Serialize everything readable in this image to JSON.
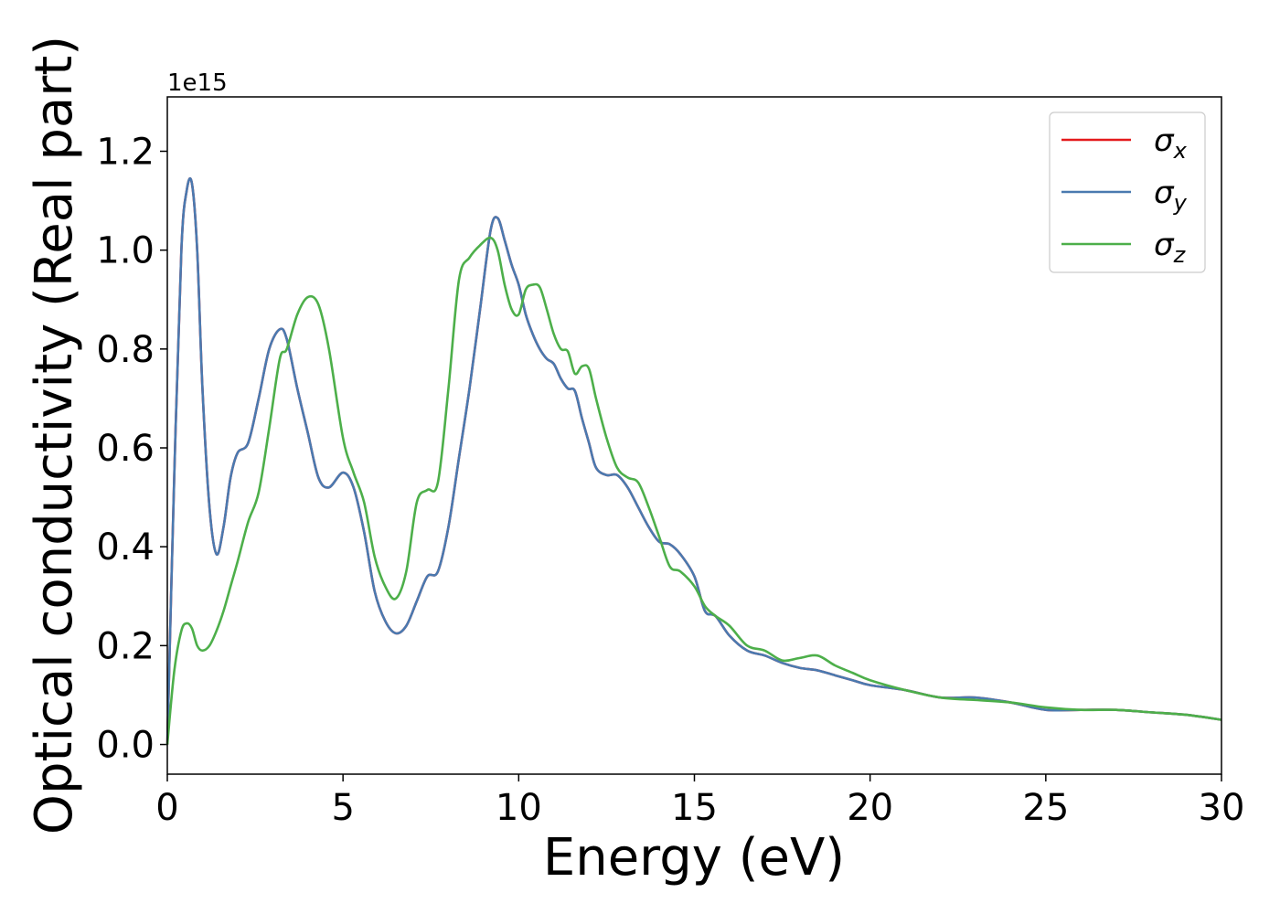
{
  "chart_data": {
    "type": "line",
    "xlabel": "Energy (eV)",
    "ylabel": "Optical conductivity (Real part)",
    "y_offset_label": "1e15",
    "xlim": [
      0,
      30
    ],
    "ylim": [
      -0.06,
      1.31
    ],
    "xticks": [
      0,
      5,
      10,
      15,
      20,
      25,
      30
    ],
    "xtick_labels": [
      "0",
      "5",
      "10",
      "15",
      "20",
      "25",
      "30"
    ],
    "yticks": [
      0.0,
      0.2,
      0.4,
      0.6,
      0.8,
      1.0,
      1.2
    ],
    "ytick_labels": [
      "0.0",
      "0.2",
      "0.4",
      "0.6",
      "0.8",
      "1.0",
      "1.2"
    ],
    "grid": false,
    "legend_position": "top-right",
    "x": [
      0,
      0.2,
      0.4,
      0.55,
      0.7,
      0.85,
      1.0,
      1.2,
      1.4,
      1.6,
      1.8,
      2.0,
      2.3,
      2.6,
      2.9,
      3.2,
      3.4,
      3.7,
      4.0,
      4.3,
      4.6,
      5.0,
      5.3,
      5.6,
      5.9,
      6.2,
      6.5,
      6.8,
      7.1,
      7.4,
      7.7,
      8.0,
      8.3,
      8.6,
      8.9,
      9.2,
      9.4,
      9.6,
      9.8,
      10.0,
      10.2,
      10.4,
      10.6,
      10.8,
      11.0,
      11.2,
      11.4,
      11.6,
      11.8,
      12.0,
      12.2,
      12.5,
      12.8,
      13.1,
      13.4,
      13.7,
      14.0,
      14.3,
      14.6,
      15.0,
      15.3,
      15.6,
      16.0,
      16.5,
      17.0,
      17.5,
      18.0,
      18.5,
      19.0,
      19.5,
      20.0,
      21.0,
      22.0,
      23.0,
      24.0,
      25.0,
      26.0,
      27.0,
      28.0,
      29.0,
      30.0
    ],
    "series": [
      {
        "name": "σx",
        "symbol": "σ",
        "subscript": "x",
        "color": "#e41a1c",
        "values": [
          0.0,
          0.55,
          1.0,
          1.12,
          1.135,
          1.0,
          0.72,
          0.48,
          0.385,
          0.44,
          0.54,
          0.59,
          0.61,
          0.7,
          0.8,
          0.84,
          0.82,
          0.72,
          0.63,
          0.54,
          0.52,
          0.55,
          0.52,
          0.43,
          0.31,
          0.25,
          0.225,
          0.24,
          0.29,
          0.34,
          0.35,
          0.44,
          0.58,
          0.72,
          0.88,
          1.04,
          1.065,
          1.02,
          0.97,
          0.93,
          0.87,
          0.83,
          0.8,
          0.78,
          0.77,
          0.74,
          0.72,
          0.715,
          0.66,
          0.61,
          0.56,
          0.545,
          0.545,
          0.52,
          0.48,
          0.44,
          0.41,
          0.405,
          0.385,
          0.34,
          0.27,
          0.26,
          0.22,
          0.19,
          0.18,
          0.165,
          0.155,
          0.15,
          0.14,
          0.13,
          0.12,
          0.11,
          0.095,
          0.095,
          0.085,
          0.07,
          0.07,
          0.07,
          0.065,
          0.06,
          0.05
        ]
      },
      {
        "name": "σy",
        "symbol": "σ",
        "subscript": "y",
        "color": "#4a7ab0",
        "values": [
          0.0,
          0.55,
          1.0,
          1.12,
          1.135,
          1.0,
          0.72,
          0.48,
          0.385,
          0.44,
          0.54,
          0.59,
          0.61,
          0.7,
          0.8,
          0.84,
          0.82,
          0.72,
          0.63,
          0.54,
          0.52,
          0.55,
          0.52,
          0.43,
          0.31,
          0.25,
          0.225,
          0.24,
          0.29,
          0.34,
          0.35,
          0.44,
          0.58,
          0.72,
          0.88,
          1.04,
          1.065,
          1.02,
          0.97,
          0.93,
          0.87,
          0.83,
          0.8,
          0.78,
          0.77,
          0.74,
          0.72,
          0.715,
          0.66,
          0.61,
          0.56,
          0.545,
          0.545,
          0.52,
          0.48,
          0.44,
          0.41,
          0.405,
          0.385,
          0.34,
          0.27,
          0.26,
          0.22,
          0.19,
          0.18,
          0.165,
          0.155,
          0.15,
          0.14,
          0.13,
          0.12,
          0.11,
          0.095,
          0.095,
          0.085,
          0.07,
          0.07,
          0.07,
          0.065,
          0.06,
          0.05
        ]
      },
      {
        "name": "σz",
        "symbol": "σ",
        "subscript": "z",
        "color": "#4daf4a",
        "values": [
          0.0,
          0.15,
          0.23,
          0.245,
          0.235,
          0.2,
          0.19,
          0.2,
          0.23,
          0.27,
          0.32,
          0.37,
          0.45,
          0.51,
          0.64,
          0.78,
          0.8,
          0.87,
          0.905,
          0.89,
          0.8,
          0.62,
          0.55,
          0.49,
          0.38,
          0.32,
          0.295,
          0.35,
          0.49,
          0.515,
          0.53,
          0.72,
          0.94,
          0.985,
          1.01,
          1.025,
          1.0,
          0.93,
          0.88,
          0.87,
          0.92,
          0.93,
          0.925,
          0.88,
          0.83,
          0.8,
          0.795,
          0.75,
          0.765,
          0.76,
          0.7,
          0.62,
          0.56,
          0.54,
          0.53,
          0.48,
          0.42,
          0.36,
          0.35,
          0.32,
          0.28,
          0.26,
          0.24,
          0.2,
          0.19,
          0.17,
          0.175,
          0.18,
          0.16,
          0.145,
          0.13,
          0.11,
          0.095,
          0.09,
          0.085,
          0.075,
          0.07,
          0.07,
          0.065,
          0.06,
          0.05
        ]
      }
    ]
  }
}
